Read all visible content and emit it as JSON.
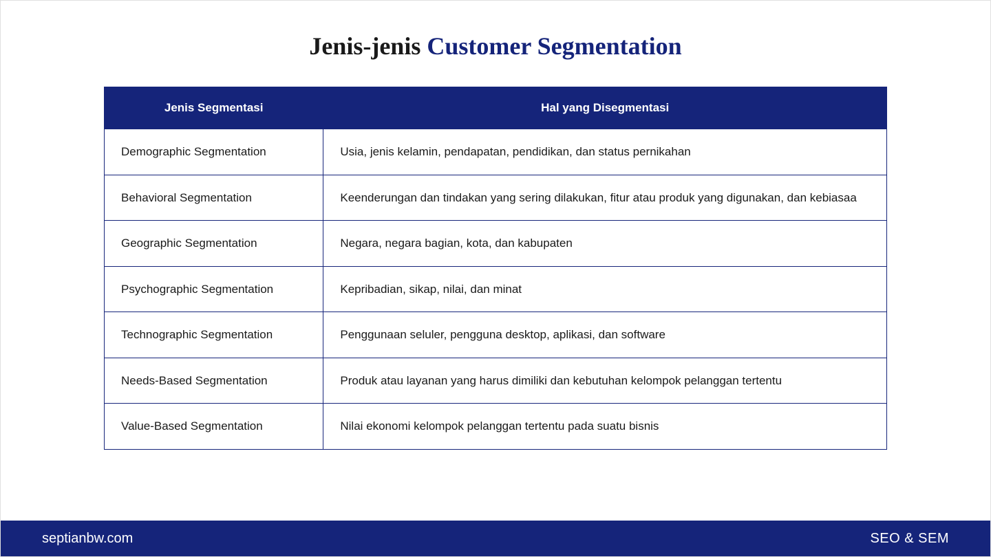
{
  "title": {
    "part1": "Jenis-jenis ",
    "part2": "Customer Segmentation"
  },
  "table": {
    "headers": {
      "col1": "Jenis Segmentasi",
      "col2": "Hal yang Disegmentasi"
    },
    "rows": [
      {
        "col1": "Demographic Segmentation",
        "col2": "Usia, jenis kelamin, pendapatan, pendidikan, dan status pernikahan"
      },
      {
        "col1": "Behavioral Segmentation",
        "col2": "Keenderungan dan tindakan yang sering dilakukan, fitur atau produk yang digunakan, dan kebiasaa"
      },
      {
        "col1": "Geographic Segmentation",
        "col2": "Negara, negara bagian, kota, dan kabupaten"
      },
      {
        "col1": "Psychographic Segmentation",
        "col2": "Kepribadian, sikap, nilai, dan minat"
      },
      {
        "col1": "Technographic Segmentation",
        "col2": "Penggunaan seluler, pengguna desktop, aplikasi, dan software"
      },
      {
        "col1": "Needs-Based Segmentation",
        "col2": "Produk atau layanan yang harus dimiliki dan kebutuhan kelompok pelanggan tertentu"
      },
      {
        "col1": "Value-Based Segmentation",
        "col2": "Nilai ekonomi kelompok pelanggan tertentu pada suatu bisnis"
      }
    ]
  },
  "footer": {
    "left": "septianbw.com",
    "right": "SEO & SEM"
  },
  "colors": {
    "accent": "#15247a",
    "text": "#1a1a1a",
    "background": "#ffffff",
    "header_text": "#ffffff"
  }
}
